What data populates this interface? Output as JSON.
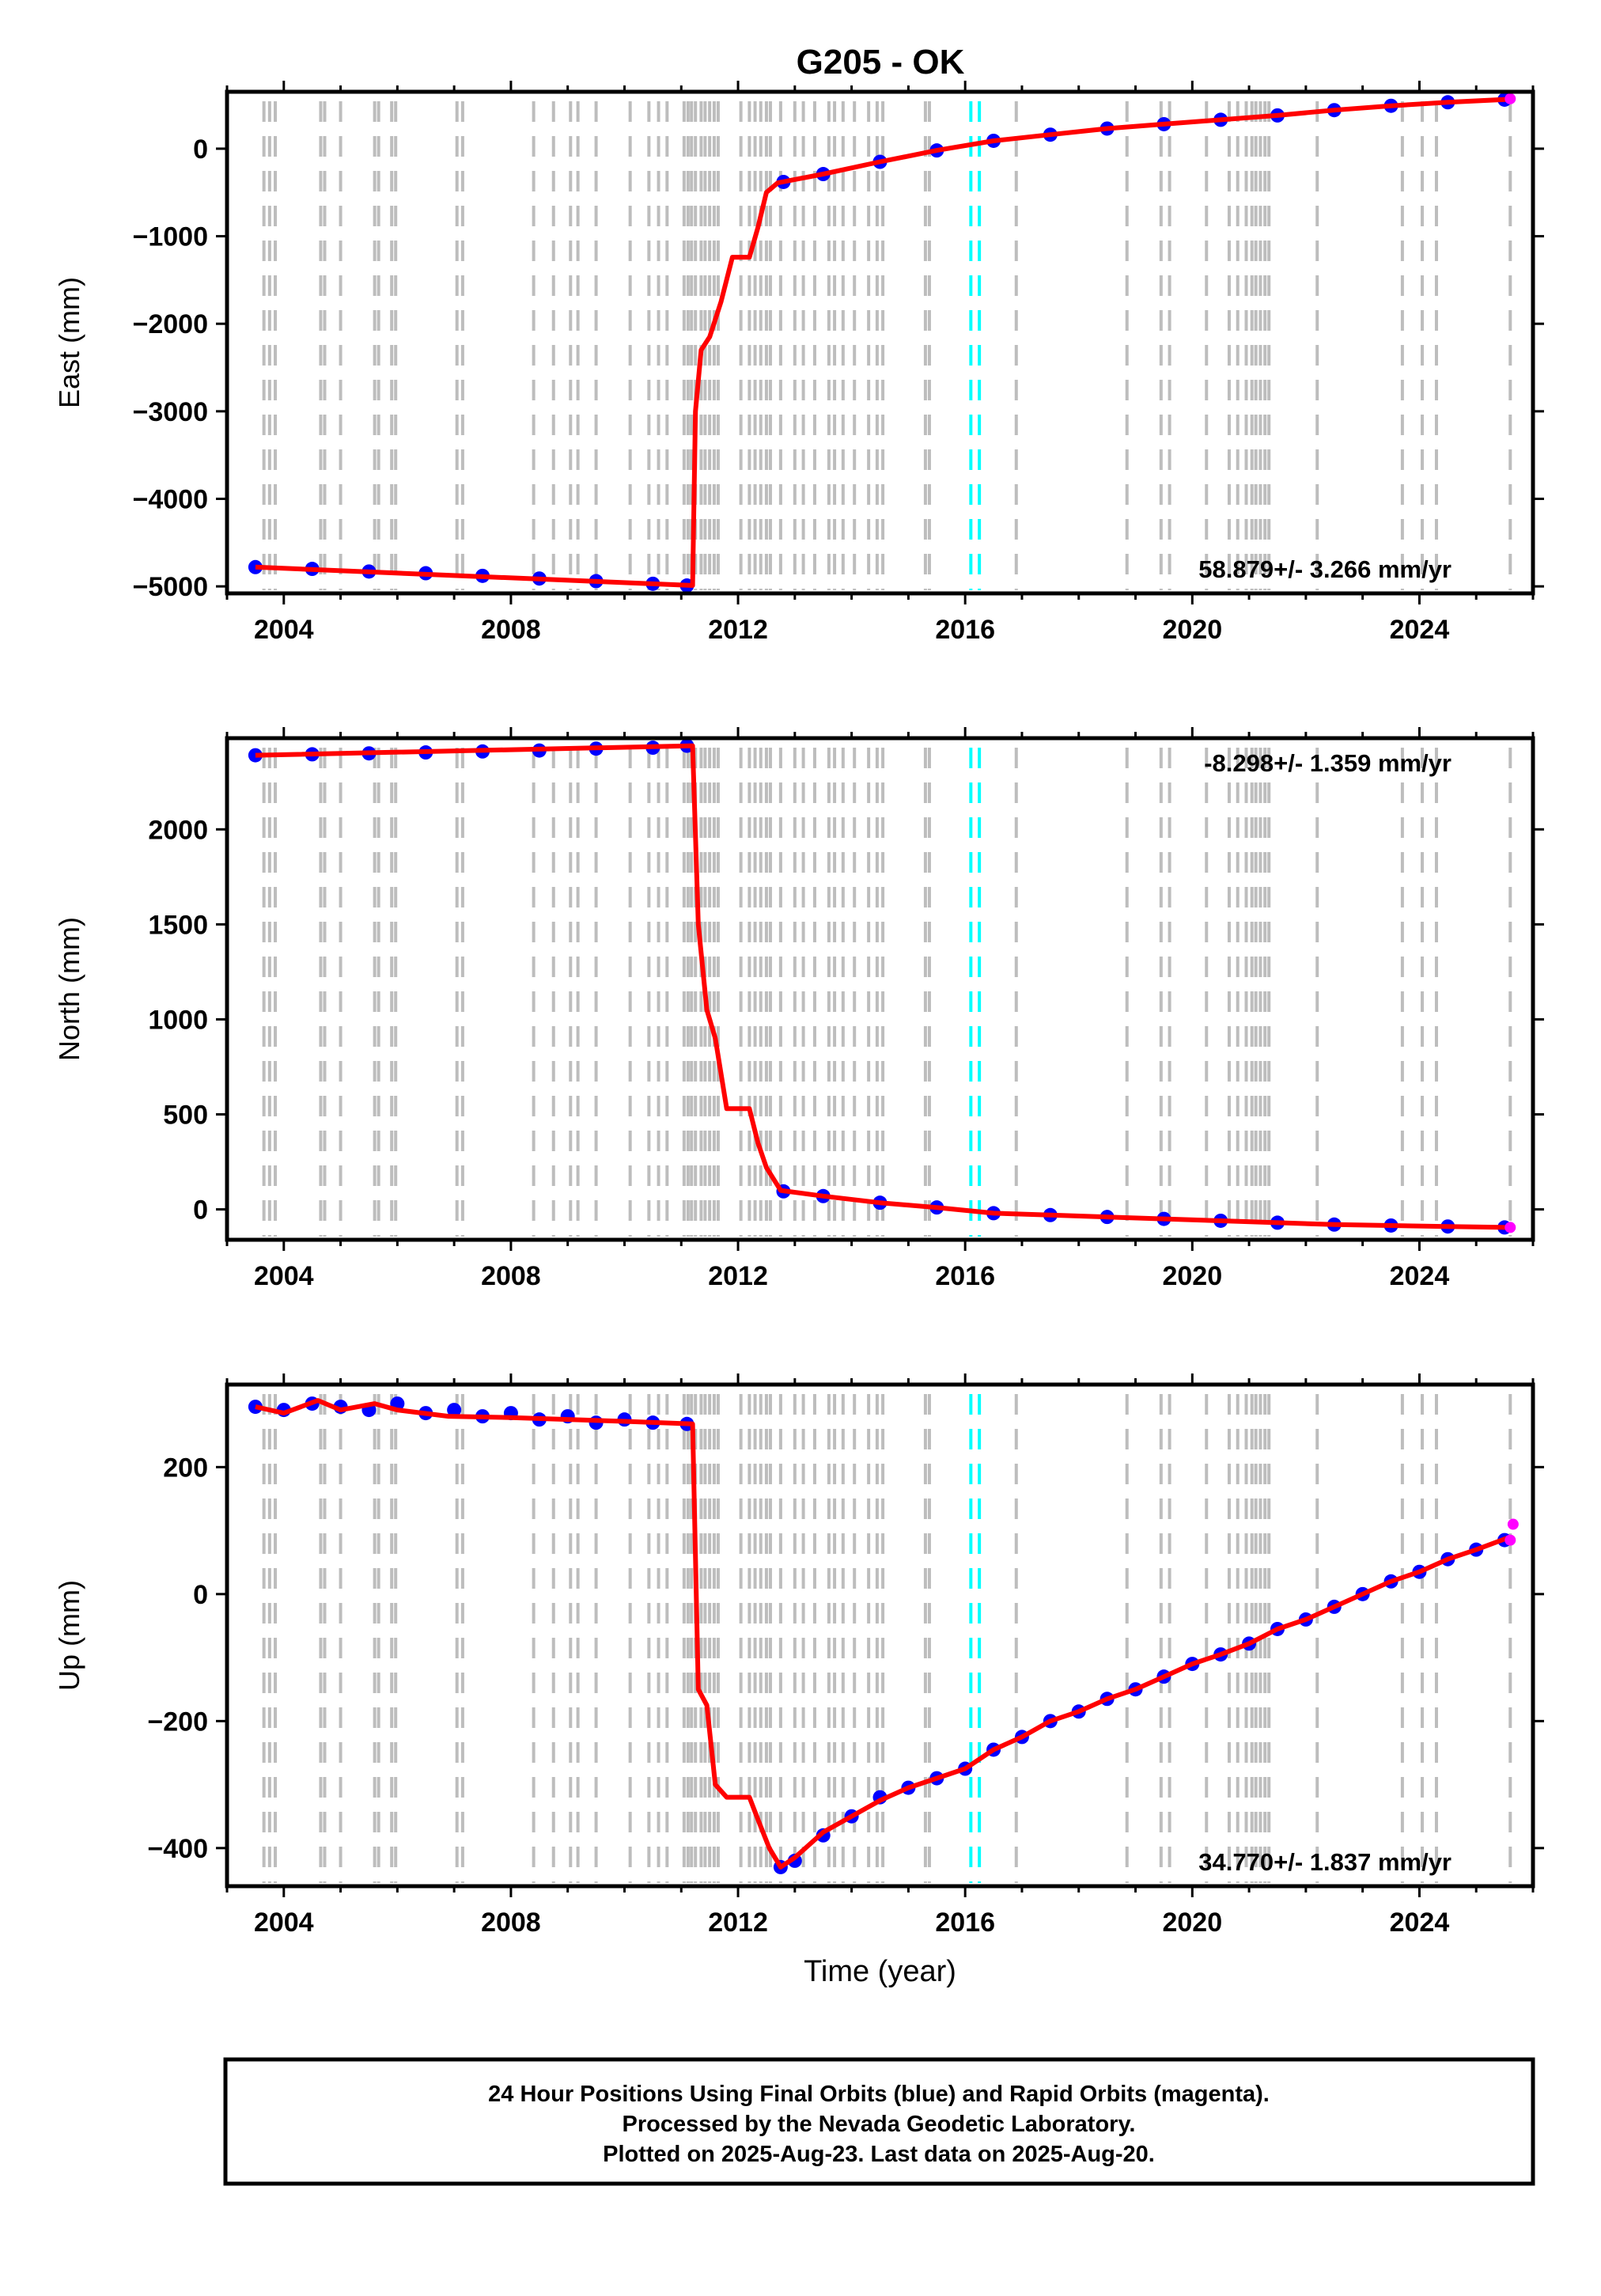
{
  "title": "G205 - OK",
  "footer": {
    "line1": "24 Hour Positions Using Final Orbits (blue) and Rapid Orbits (magenta).",
    "line2": "Processed by the Nevada Geodetic Laboratory.",
    "line3": "Plotted on 2025-Aug-23. Last data on 2025-Aug-20."
  },
  "colors": {
    "final": "#0000ff",
    "rapid": "#ff00ff",
    "model": "#ff0000",
    "event_line": "#bdbdbd",
    "equipment_line": "#00ffff"
  },
  "chart_data": [
    {
      "type": "scatter",
      "name": "east",
      "ylabel": "East (mm)",
      "xlabel": "",
      "xlim": [
        2003.0,
        2026.0
      ],
      "ylim": [
        -5080,
        650
      ],
      "yticks": [
        0,
        -1000,
        -2000,
        -3000,
        -4000,
        -5000
      ],
      "ytick_labels": [
        "0",
        "−1000",
        "−2000",
        "−3000",
        "−4000",
        "−5000"
      ],
      "xticks": [
        2004,
        2008,
        2012,
        2016,
        2020,
        2024
      ],
      "rate_label": "58.879+/- 3.266 mm/yr",
      "rate_position": "bottom-right",
      "final_points": {
        "x": [
          2003.5,
          2004.5,
          2005.5,
          2006.5,
          2007.5,
          2008.5,
          2009.5,
          2010.5,
          2011.1,
          2012.8,
          2013.5,
          2014.5,
          2015.5,
          2016.5,
          2017.5,
          2018.5,
          2019.5,
          2020.5,
          2021.5,
          2022.5,
          2023.5,
          2024.5,
          2025.5
        ],
        "y": [
          -4780,
          -4800,
          -4830,
          -4850,
          -4880,
          -4910,
          -4940,
          -4970,
          -4990,
          -380,
          -290,
          -150,
          -20,
          90,
          160,
          230,
          280,
          330,
          380,
          440,
          490,
          530,
          560
        ]
      },
      "rapid_points": {
        "x": [
          2025.6
        ],
        "y": [
          570
        ]
      },
      "model": {
        "x": [
          2003.5,
          2011.2,
          2011.25,
          2011.35,
          2011.5,
          2011.7,
          2011.9,
          2012.2,
          2012.35,
          2012.5,
          2012.7,
          2013.5,
          2014.5,
          2015.5,
          2016.5,
          2017.5,
          2018.5,
          2019.5,
          2020.5,
          2021.5,
          2022.5,
          2023.5,
          2024.5,
          2025.6
        ],
        "y": [
          -4780,
          -4990,
          -3000,
          -2300,
          -2150,
          -1750,
          -1240,
          -1240,
          -900,
          -500,
          -390,
          -290,
          -150,
          -20,
          90,
          160,
          230,
          280,
          330,
          380,
          440,
          490,
          530,
          565
        ]
      }
    },
    {
      "type": "scatter",
      "name": "north",
      "ylabel": "North (mm)",
      "xlabel": "",
      "xlim": [
        2003.0,
        2026.0
      ],
      "ylim": [
        -160,
        2480
      ],
      "yticks": [
        0,
        500,
        1000,
        1500,
        2000
      ],
      "ytick_labels": [
        "0",
        "500",
        "1000",
        "1500",
        "2000"
      ],
      "xticks": [
        2004,
        2008,
        2012,
        2016,
        2020,
        2024
      ],
      "rate_label": "-8.298+/- 1.359 mm/yr",
      "rate_position": "top-right",
      "final_points": {
        "x": [
          2003.5,
          2004.5,
          2005.5,
          2006.5,
          2007.5,
          2008.5,
          2009.5,
          2010.5,
          2011.1,
          2012.8,
          2013.5,
          2014.5,
          2015.5,
          2016.5,
          2017.5,
          2018.5,
          2019.5,
          2020.5,
          2021.5,
          2022.5,
          2023.5,
          2024.5,
          2025.5
        ],
        "y": [
          2390,
          2395,
          2400,
          2405,
          2410,
          2415,
          2425,
          2430,
          2440,
          95,
          70,
          35,
          10,
          -20,
          -30,
          -40,
          -50,
          -60,
          -70,
          -80,
          -85,
          -90,
          -95
        ]
      },
      "rapid_points": {
        "x": [
          2025.6
        ],
        "y": [
          -95
        ]
      },
      "model": {
        "x": [
          2003.5,
          2011.2,
          2011.3,
          2011.45,
          2011.6,
          2011.8,
          2012.2,
          2012.35,
          2012.5,
          2012.75,
          2013.5,
          2014.5,
          2015.5,
          2016.5,
          2017.5,
          2018.5,
          2019.5,
          2020.5,
          2021.5,
          2022.5,
          2023.5,
          2024.5,
          2025.6
        ],
        "y": [
          2390,
          2440,
          1500,
          1050,
          900,
          530,
          530,
          350,
          220,
          100,
          70,
          35,
          10,
          -20,
          -30,
          -40,
          -50,
          -60,
          -70,
          -80,
          -85,
          -90,
          -95
        ]
      }
    },
    {
      "type": "scatter",
      "name": "up",
      "ylabel": "Up (mm)",
      "xlabel": "Time (year)",
      "xlim": [
        2003.0,
        2026.0
      ],
      "ylim": [
        -460,
        330
      ],
      "yticks": [
        200,
        0,
        -200,
        -400
      ],
      "ytick_labels": [
        "200",
        "0",
        "−200",
        "−400"
      ],
      "xticks": [
        2004,
        2008,
        2012,
        2016,
        2020,
        2024
      ],
      "rate_label": "34.770+/- 1.837 mm/yr",
      "rate_position": "bottom-right",
      "final_points": {
        "x": [
          2003.5,
          2004.0,
          2004.5,
          2005.0,
          2005.5,
          2006.0,
          2006.5,
          2007.0,
          2007.5,
          2008.0,
          2008.5,
          2009.0,
          2009.5,
          2010.0,
          2010.5,
          2011.1,
          2012.75,
          2013.0,
          2013.5,
          2014.0,
          2014.5,
          2015.0,
          2015.5,
          2016.0,
          2016.5,
          2017.0,
          2017.5,
          2018.0,
          2018.5,
          2019.0,
          2019.5,
          2020.0,
          2020.5,
          2021.0,
          2021.5,
          2022.0,
          2022.5,
          2023.0,
          2023.5,
          2024.0,
          2024.5,
          2025.0,
          2025.5
        ],
        "y": [
          295,
          290,
          300,
          295,
          290,
          300,
          285,
          290,
          280,
          285,
          275,
          280,
          270,
          275,
          270,
          268,
          -430,
          -420,
          -380,
          -350,
          -320,
          -305,
          -290,
          -275,
          -245,
          -225,
          -200,
          -185,
          -165,
          -150,
          -130,
          -110,
          -95,
          -78,
          -55,
          -40,
          -20,
          0,
          20,
          35,
          55,
          70,
          85
        ]
      },
      "rapid_points": {
        "x": [
          2025.6,
          2025.65
        ],
        "y": [
          85,
          110
        ]
      },
      "model": {
        "x": [
          2003.5,
          2004.0,
          2004.6,
          2005.0,
          2005.6,
          2006.0,
          2006.9,
          2008.0,
          2009.0,
          2010.0,
          2011.2,
          2011.3,
          2011.45,
          2011.6,
          2011.8,
          2012.2,
          2012.35,
          2012.55,
          2012.75,
          2013.0,
          2013.5,
          2014.0,
          2014.5,
          2015.0,
          2015.5,
          2016.0,
          2016.5,
          2017.0,
          2017.5,
          2018.0,
          2018.5,
          2019.0,
          2019.5,
          2020.0,
          2020.5,
          2021.0,
          2021.5,
          2022.0,
          2022.5,
          2023.0,
          2023.5,
          2024.0,
          2024.5,
          2025.0,
          2025.6
        ],
        "y": [
          295,
          285,
          305,
          290,
          300,
          290,
          280,
          278,
          275,
          272,
          268,
          -150,
          -175,
          -300,
          -320,
          -320,
          -355,
          -400,
          -430,
          -415,
          -375,
          -350,
          -325,
          -305,
          -290,
          -275,
          -245,
          -225,
          -200,
          -185,
          -165,
          -150,
          -130,
          -110,
          -95,
          -78,
          -55,
          -40,
          -20,
          0,
          20,
          35,
          55,
          70,
          90
        ]
      }
    }
  ],
  "event_lines": [
    2003.65,
    2003.75,
    2003.85,
    2004.65,
    2004.72,
    2005.0,
    2005.6,
    2005.67,
    2005.9,
    2005.97,
    2007.05,
    2007.15,
    2008.4,
    2008.75,
    2009.05,
    2009.18,
    2009.5,
    2010.1,
    2010.43,
    2010.6,
    2010.75,
    2011.05,
    2011.12,
    2011.18,
    2011.25,
    2011.35,
    2011.42,
    2011.5,
    2011.58,
    2011.65,
    2012.05,
    2012.2,
    2012.3,
    2012.4,
    2012.5,
    2012.57,
    2012.75,
    2013.0,
    2013.15,
    2013.35,
    2013.6,
    2013.7,
    2013.85,
    2014.05,
    2014.3,
    2014.45,
    2014.55,
    2015.3,
    2015.37,
    2016.9,
    2018.85,
    2019.45,
    2019.6,
    2020.25,
    2020.65,
    2020.8,
    2020.95,
    2021.05,
    2021.12,
    2021.2,
    2021.28,
    2021.35,
    2022.2,
    2023.7,
    2024.05,
    2024.3,
    2025.6
  ],
  "equipment_lines": [
    2016.1,
    2016.25
  ]
}
